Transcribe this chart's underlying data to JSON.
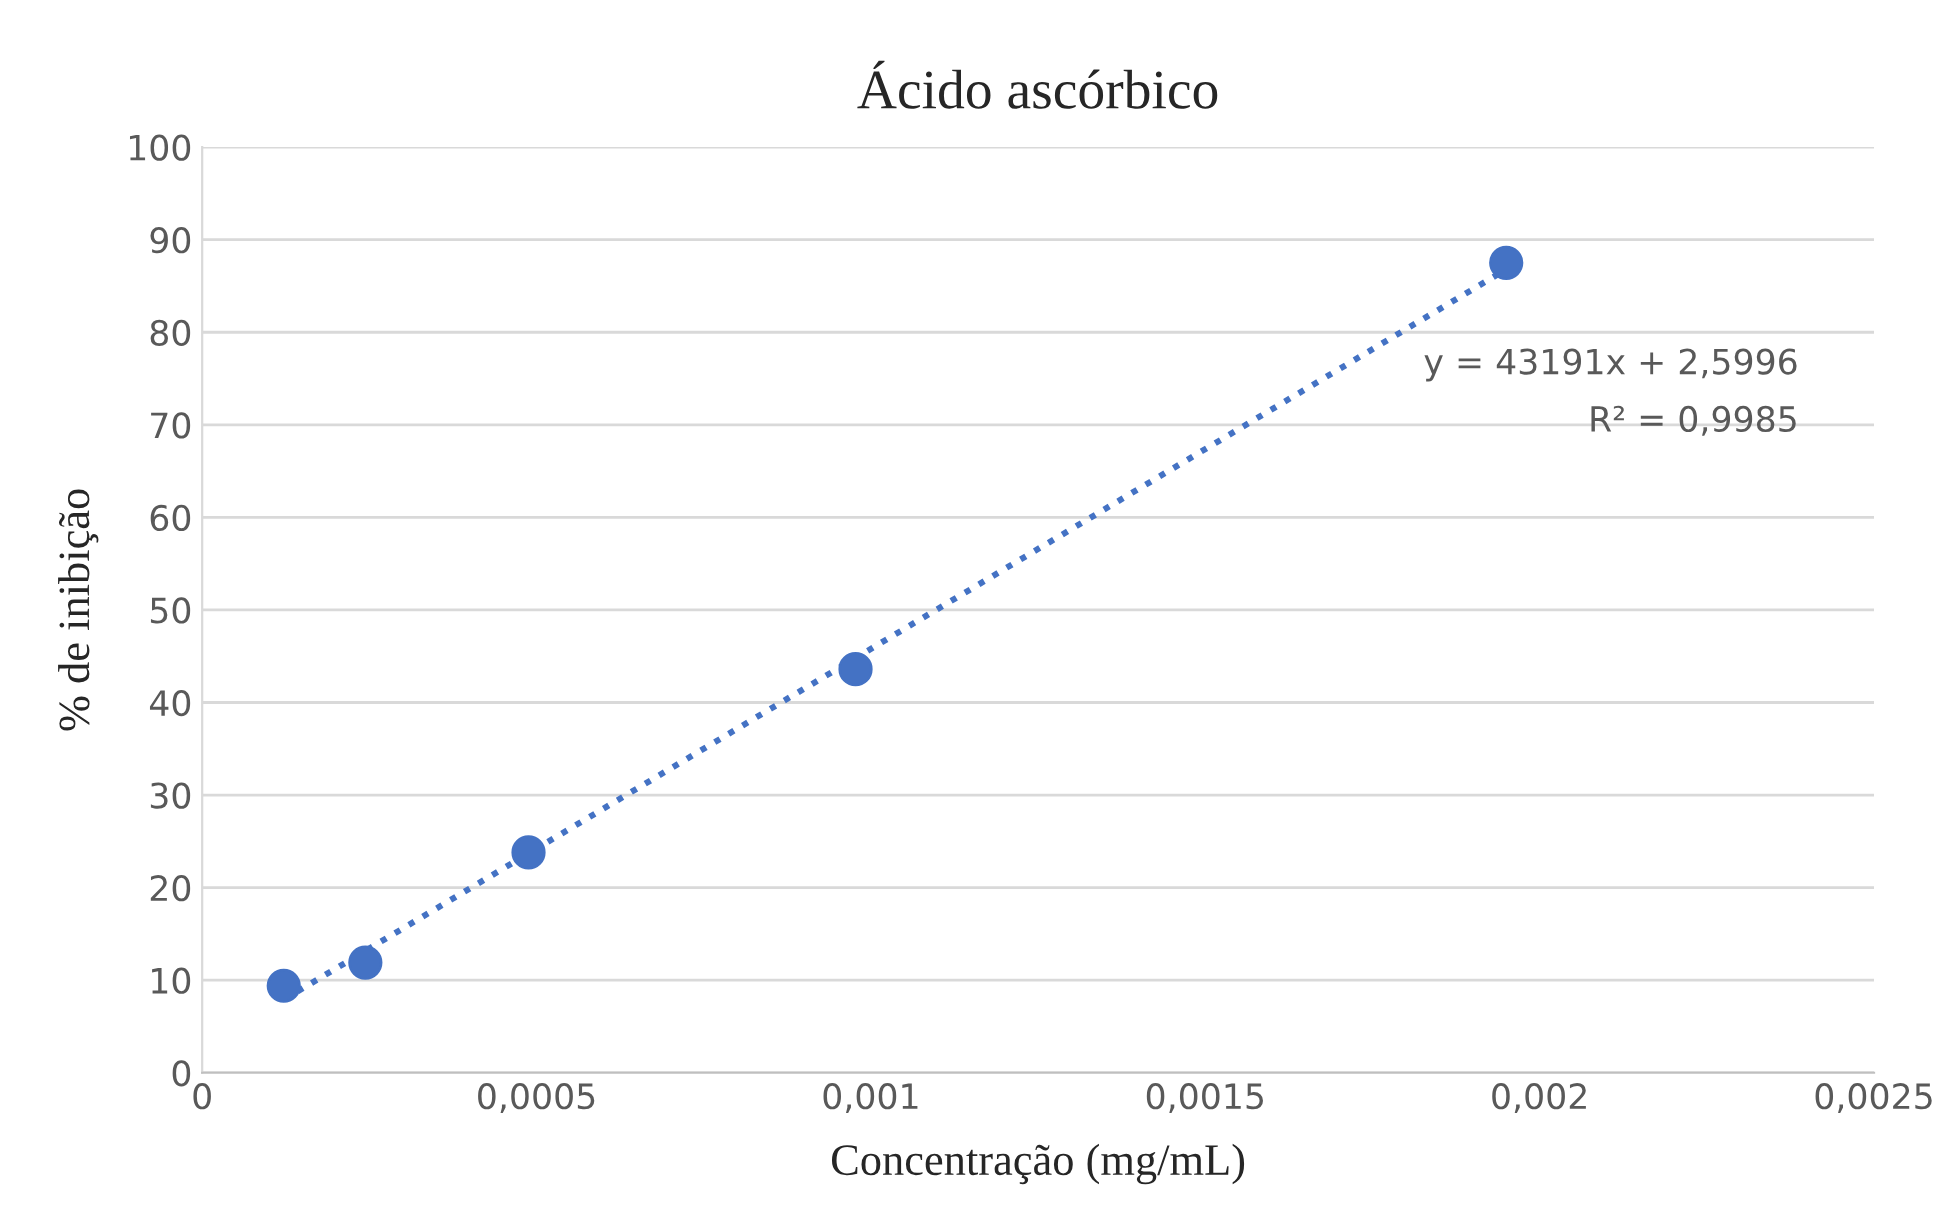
{
  "chart_data": {
    "type": "scatter",
    "title": "Ácido ascórbico",
    "xlabel": "Concentração (mg/mL)",
    "ylabel": "% de inibição",
    "series": [
      {
        "color": "#4472c4",
        "marker": "circle",
        "x": [
          0.000122,
          0.000244,
          0.000488,
          0.000977,
          0.00195
        ],
        "values": [
          9.4,
          11.9,
          23.8,
          43.6,
          87.5
        ]
      },
      {
        "type": "line",
        "color": "#4472c4",
        "line_style": "dotted",
        "marker": "none",
        "x": [
          0.000122,
          0.00195
        ],
        "values": [
          7.9,
          86.8
        ]
      }
    ],
    "annotations": [
      "y = 43191x + 2,5996",
      "R² = 0,9985"
    ],
    "xlim": [
      0,
      0.0025
    ],
    "xticks": [
      0,
      {
        "value": 0.0005,
        "label": "0,0005"
      },
      {
        "value": 0.001,
        "label": "0,001"
      },
      {
        "value": 0.0015,
        "label": "0,0015"
      },
      {
        "value": 0.002,
        "label": "0,002"
      },
      {
        "value": 0.0025,
        "label": "0,0025"
      }
    ],
    "ylim": [
      0,
      100
    ],
    "yticks": [
      0,
      10,
      20,
      30,
      40,
      50,
      60,
      70,
      80,
      90,
      100
    ],
    "grid": "y",
    "legend": false
  }
}
